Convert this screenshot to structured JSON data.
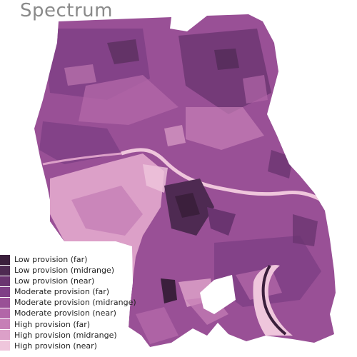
{
  "title": "Spectrum",
  "legend": {
    "items": [
      {
        "label": "Low provision (far)",
        "color": "#3b1f3c"
      },
      {
        "label": "Low provision (midrange)",
        "color": "#4e2a52"
      },
      {
        "label": "Low provision (near)",
        "color": "#6a3470"
      },
      {
        "label": "Moderate provision (far)",
        "color": "#7f3f86"
      },
      {
        "label": "Moderate provision (midrange)",
        "color": "#995096"
      },
      {
        "label": "Moderate provision (near)",
        "color": "#b266a8"
      },
      {
        "label": "High provision (far)",
        "color": "#c67fb6"
      },
      {
        "label": "High provision (midrange)",
        "color": "#dca0c8"
      },
      {
        "label": "High provision (near)",
        "color": "#efc6dc"
      }
    ]
  }
}
